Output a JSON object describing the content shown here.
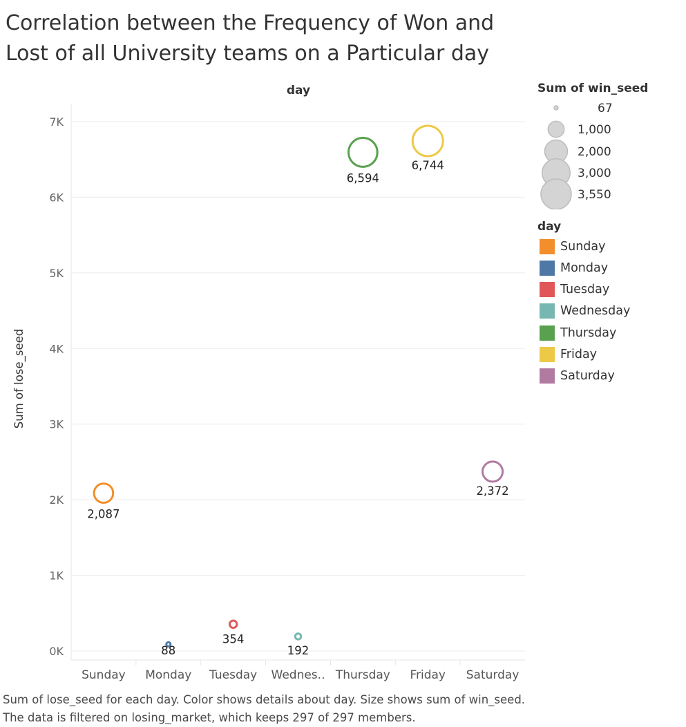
{
  "title": "Correlation between the Frequency of Won and Lost of all University teams on a Particular day",
  "caption": "Sum of lose_seed for each day.  Color shows details about day.  Size shows sum of win_seed. The data is filtered on losing_market, which keeps 297 of 297 members.",
  "chart_data": {
    "type": "scatter",
    "column_header": "day",
    "ylabel": "Sum of lose_seed",
    "categories": [
      "Sunday",
      "Monday",
      "Tuesday",
      "Wednesday",
      "Thursday",
      "Friday",
      "Saturday"
    ],
    "tick_labels": [
      "Sunday",
      "Monday",
      "Tuesday",
      "Wednes..",
      "Thursday",
      "Friday",
      "Saturday"
    ],
    "values": [
      2087,
      88,
      354,
      192,
      6594,
      6744,
      2372
    ],
    "data_labels": [
      "2,087",
      "88",
      "354",
      "192",
      "6,594",
      "6,744",
      "2,372"
    ],
    "size_values": [
      1400,
      67,
      200,
      130,
      3200,
      3550,
      1550
    ],
    "colors": [
      "#f28e2b",
      "#4e79a7",
      "#e15759",
      "#76b7b2",
      "#59a14f",
      "#edc948",
      "#b07aa1"
    ],
    "ylim": [
      0,
      7000
    ],
    "yticks": [
      0,
      1000,
      2000,
      3000,
      4000,
      5000,
      6000,
      7000
    ],
    "ytick_labels": [
      "0K",
      "1K",
      "2K",
      "3K",
      "4K",
      "5K",
      "6K",
      "7K"
    ],
    "grid": true,
    "legend_position": "right"
  },
  "size_legend": {
    "title": "Sum of win_seed",
    "values": [
      67,
      1000,
      2000,
      3000,
      3550
    ],
    "labels": [
      "67",
      "1,000",
      "2,000",
      "3,000",
      "3,550"
    ]
  },
  "color_legend": {
    "title": "day",
    "items": [
      {
        "label": "Sunday",
        "color": "#f28e2b"
      },
      {
        "label": "Monday",
        "color": "#4e79a7"
      },
      {
        "label": "Tuesday",
        "color": "#e15759"
      },
      {
        "label": "Wednesday",
        "color": "#76b7b2"
      },
      {
        "label": "Thursday",
        "color": "#59a14f"
      },
      {
        "label": "Friday",
        "color": "#edc948"
      },
      {
        "label": "Saturday",
        "color": "#b07aa1"
      }
    ]
  }
}
